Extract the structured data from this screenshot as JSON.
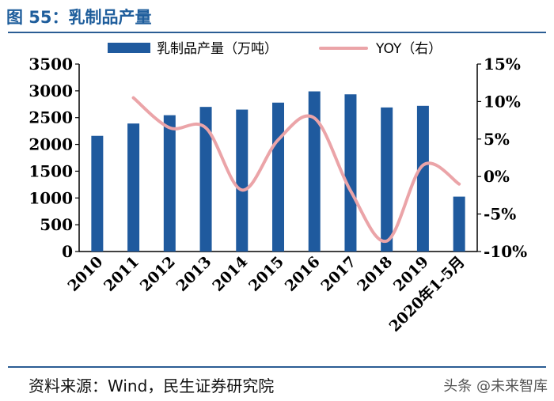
{
  "figure": {
    "title": "图 55：乳制品产量",
    "source": "资料来源：Wind，民生证券研究院",
    "watermark": "头条 @未来智库"
  },
  "colors": {
    "bar": "#1f5a9e",
    "line": "#eba4a8",
    "rule": "#2b5d94",
    "title": "#1f5e9c"
  },
  "chart_data": {
    "type": "bar",
    "categories": [
      "2010",
      "2011",
      "2012",
      "2013",
      "2014",
      "2015",
      "2016",
      "2017",
      "2018",
      "2019",
      "2020年1-5月"
    ],
    "series": [
      {
        "name": "乳制品产量（万吨）",
        "type": "bar",
        "axis": "left",
        "values": [
          2160,
          2390,
          2545,
          2700,
          2650,
          2780,
          2990,
          2935,
          2690,
          2720,
          1025
        ]
      },
      {
        "name": "YOY（右）",
        "type": "line",
        "axis": "right",
        "values": [
          null,
          10.5,
          6.5,
          6.5,
          -1.8,
          4.9,
          7.8,
          -1.9,
          -8.6,
          1.5,
          -1.0
        ]
      }
    ],
    "y_left": {
      "min": 0,
      "max": 3500,
      "ticks": [
        "0",
        "500",
        "1000",
        "1500",
        "2000",
        "2500",
        "3000",
        "3500"
      ]
    },
    "y_right": {
      "min": -10,
      "max": 15,
      "ticks": [
        "-10%",
        "-5%",
        "0%",
        "5%",
        "10%",
        "15%"
      ]
    },
    "legend": {
      "position": "top"
    },
    "grid": false
  }
}
